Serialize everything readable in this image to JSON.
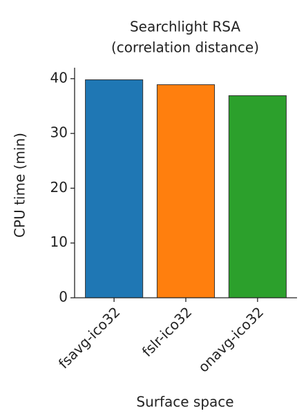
{
  "chart_data": {
    "type": "bar",
    "title": [
      "Searchlight RSA",
      "(correlation distance)"
    ],
    "x_label": "Surface space",
    "y_label": "CPU time (min)",
    "categories": [
      "fsavg-ico32",
      "fslr-ico32",
      "onavg-ico32"
    ],
    "values": [
      39.8,
      38.9,
      36.9
    ],
    "colors": [
      "#1f77b4",
      "#ff7f0e",
      "#2ca02c"
    ],
    "ylim": [
      0,
      42
    ],
    "yticks": [
      0,
      10,
      20,
      30,
      40
    ],
    "grid": false
  }
}
